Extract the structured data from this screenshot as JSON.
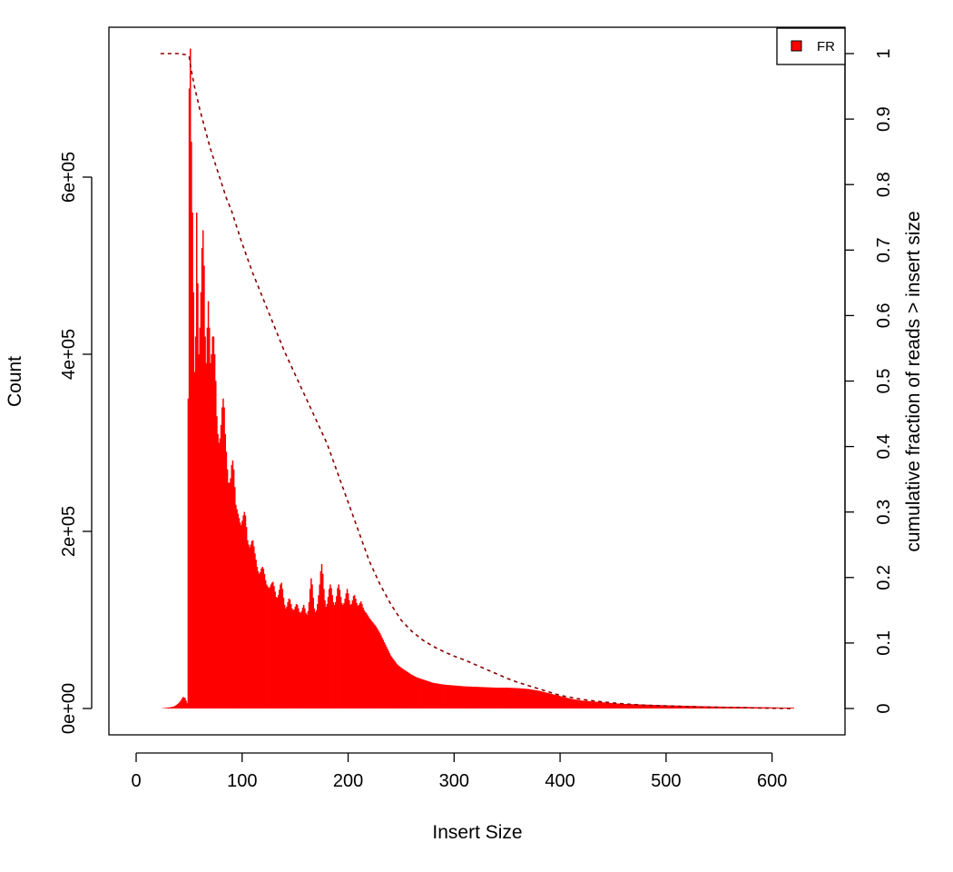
{
  "chart_data": {
    "type": "bar",
    "xlabel": "Insert Size",
    "ylabel": "Count",
    "y2label": "cumulative fraction of reads > insert size",
    "xlim": [
      0,
      620
    ],
    "ylim": [
      0,
      740000
    ],
    "y2lim": [
      0,
      1
    ],
    "x_ticks": [
      0,
      100,
      200,
      300,
      400,
      500,
      600
    ],
    "x_tick_labels": [
      "0",
      "100",
      "200",
      "300",
      "400",
      "500",
      "600"
    ],
    "y_ticks": [
      0,
      200000,
      400000,
      600000
    ],
    "y_tick_labels": [
      "0e+00",
      "2e+05",
      "4e+05",
      "6e+05"
    ],
    "y2_ticks": [
      0,
      0.1,
      0.2,
      0.3,
      0.4,
      0.5,
      0.6,
      0.7,
      0.8,
      0.9,
      1
    ],
    "y2_tick_labels": [
      "0",
      "0.1",
      "0.2",
      "0.3",
      "0.4",
      "0.5",
      "0.6",
      "0.7",
      "0.8",
      "0.9",
      "1"
    ],
    "legend": {
      "position": "top-right",
      "entries": [
        {
          "label": "FR",
          "color": "#ff0000"
        }
      ]
    },
    "colors": {
      "bars": "#ff0000",
      "cumulative": "#8b0000"
    },
    "series": [
      {
        "name": "FR",
        "kind": "histogram",
        "points": [
          [
            23,
            0
          ],
          [
            30,
            1000
          ],
          [
            35,
            2000
          ],
          [
            38,
            4000
          ],
          [
            40,
            6000
          ],
          [
            42,
            9000
          ],
          [
            44,
            13000
          ],
          [
            46,
            12000
          ],
          [
            48,
            6000
          ],
          [
            49,
            350000
          ],
          [
            50,
            700000
          ],
          [
            51,
            745000
          ],
          [
            52,
            640000
          ],
          [
            53,
            560000
          ],
          [
            54,
            470000
          ],
          [
            55,
            380000
          ],
          [
            56,
            420000
          ],
          [
            57,
            560000
          ],
          [
            58,
            480000
          ],
          [
            59,
            400000
          ],
          [
            60,
            430000
          ],
          [
            61,
            470000
          ],
          [
            62,
            520000
          ],
          [
            63,
            540000
          ],
          [
            64,
            500000
          ],
          [
            65,
            420000
          ],
          [
            66,
            390000
          ],
          [
            67,
            430000
          ],
          [
            68,
            460000
          ],
          [
            69,
            430000
          ],
          [
            70,
            390000
          ],
          [
            71,
            400000
          ],
          [
            72,
            420000
          ],
          [
            73,
            420000
          ],
          [
            74,
            400000
          ],
          [
            75,
            370000
          ],
          [
            76,
            330000
          ],
          [
            77,
            310000
          ],
          [
            78,
            300000
          ],
          [
            79,
            305000
          ],
          [
            80,
            320000
          ],
          [
            81,
            340000
          ],
          [
            82,
            350000
          ],
          [
            83,
            340000
          ],
          [
            84,
            310000
          ],
          [
            85,
            290000
          ],
          [
            86,
            270000
          ],
          [
            87,
            255000
          ],
          [
            88,
            255000
          ],
          [
            89,
            260000
          ],
          [
            90,
            275000
          ],
          [
            91,
            280000
          ],
          [
            92,
            270000
          ],
          [
            93,
            250000
          ],
          [
            94,
            230000
          ],
          [
            95,
            225000
          ],
          [
            96,
            220000
          ],
          [
            97,
            215000
          ],
          [
            98,
            210000
          ],
          [
            99,
            207000
          ],
          [
            100,
            212000
          ],
          [
            101,
            218000
          ],
          [
            102,
            222000
          ],
          [
            103,
            218000
          ],
          [
            104,
            205000
          ],
          [
            105,
            190000
          ],
          [
            106,
            185000
          ],
          [
            107,
            182000
          ],
          [
            108,
            185000
          ],
          [
            109,
            189000
          ],
          [
            110,
            190000
          ],
          [
            111,
            183000
          ],
          [
            112,
            175000
          ],
          [
            113,
            168000
          ],
          [
            114,
            160000
          ],
          [
            115,
            155000
          ],
          [
            116,
            152000
          ],
          [
            117,
            154000
          ],
          [
            118,
            158000
          ],
          [
            119,
            160000
          ],
          [
            120,
            158000
          ],
          [
            121,
            152000
          ],
          [
            122,
            145000
          ],
          [
            123,
            140000
          ],
          [
            124,
            138000
          ],
          [
            125,
            136000
          ],
          [
            126,
            137000
          ],
          [
            127,
            140000
          ],
          [
            128,
            142000
          ],
          [
            129,
            143000
          ],
          [
            130,
            138000
          ],
          [
            131,
            132000
          ],
          [
            132,
            126000
          ],
          [
            133,
            125000
          ],
          [
            134,
            128000
          ],
          [
            135,
            134000
          ],
          [
            136,
            140000
          ],
          [
            137,
            142000
          ],
          [
            138,
            135000
          ],
          [
            139,
            125000
          ],
          [
            140,
            117000
          ],
          [
            141,
            113000
          ],
          [
            142,
            115000
          ],
          [
            143,
            120000
          ],
          [
            144,
            124000
          ],
          [
            145,
            123000
          ],
          [
            146,
            118000
          ],
          [
            147,
            113000
          ],
          [
            148,
            111000
          ],
          [
            149,
            112000
          ],
          [
            150,
            115000
          ],
          [
            151,
            118000
          ],
          [
            152,
            117000
          ],
          [
            153,
            113000
          ],
          [
            154,
            109000
          ],
          [
            155,
            108000
          ],
          [
            156,
            110000
          ],
          [
            157,
            114000
          ],
          [
            158,
            117000
          ],
          [
            159,
            113000
          ],
          [
            160,
            108000
          ],
          [
            161,
            106000
          ],
          [
            162,
            110000
          ],
          [
            163,
            120000
          ],
          [
            164,
            135000
          ],
          [
            165,
            147000
          ],
          [
            166,
            140000
          ],
          [
            167,
            125000
          ],
          [
            168,
            113000
          ],
          [
            169,
            109000
          ],
          [
            170,
            111000
          ],
          [
            171,
            118000
          ],
          [
            172,
            128000
          ],
          [
            173,
            140000
          ],
          [
            174,
            155000
          ],
          [
            175,
            163000
          ],
          [
            176,
            152000
          ],
          [
            177,
            135000
          ],
          [
            178,
            122000
          ],
          [
            179,
            115000
          ],
          [
            180,
            118000
          ],
          [
            181,
            126000
          ],
          [
            182,
            135000
          ],
          [
            183,
            140000
          ],
          [
            184,
            136000
          ],
          [
            185,
            128000
          ],
          [
            186,
            120000
          ],
          [
            187,
            117000
          ],
          [
            188,
            120000
          ],
          [
            189,
            127000
          ],
          [
            190,
            136000
          ],
          [
            191,
            140000
          ],
          [
            192,
            134000
          ],
          [
            193,
            126000
          ],
          [
            194,
            119000
          ],
          [
            195,
            117000
          ],
          [
            196,
            119000
          ],
          [
            197,
            124000
          ],
          [
            198,
            130000
          ],
          [
            199,
            135000
          ],
          [
            200,
            130000
          ],
          [
            201,
            122000
          ],
          [
            202,
            117000
          ],
          [
            203,
            118000
          ],
          [
            204,
            122000
          ],
          [
            205,
            127000
          ],
          [
            206,
            128000
          ],
          [
            207,
            124000
          ],
          [
            208,
            119000
          ],
          [
            209,
            116000
          ],
          [
            210,
            117000
          ],
          [
            211,
            119000
          ],
          [
            212,
            121000
          ],
          [
            213,
            118000
          ],
          [
            214,
            114000
          ],
          [
            215,
            111000
          ],
          [
            216,
            109000
          ],
          [
            217,
            108000
          ],
          [
            218,
            106000
          ],
          [
            219,
            104000
          ],
          [
            220,
            102000
          ],
          [
            222,
            99000
          ],
          [
            224,
            96000
          ],
          [
            226,
            93000
          ],
          [
            228,
            89000
          ],
          [
            230,
            85000
          ],
          [
            232,
            80000
          ],
          [
            234,
            75000
          ],
          [
            236,
            70000
          ],
          [
            238,
            65000
          ],
          [
            240,
            60000
          ],
          [
            243,
            55000
          ],
          [
            246,
            50000
          ],
          [
            250,
            46000
          ],
          [
            255,
            42000
          ],
          [
            260,
            38000
          ],
          [
            265,
            35000
          ],
          [
            270,
            33000
          ],
          [
            275,
            31000
          ],
          [
            280,
            29000
          ],
          [
            285,
            28000
          ],
          [
            290,
            27000
          ],
          [
            300,
            26000
          ],
          [
            310,
            25000
          ],
          [
            320,
            24500
          ],
          [
            330,
            24000
          ],
          [
            340,
            23500
          ],
          [
            350,
            23500
          ],
          [
            360,
            23000
          ],
          [
            370,
            22000
          ],
          [
            380,
            20000
          ],
          [
            390,
            17000
          ],
          [
            400,
            14000
          ],
          [
            410,
            11000
          ],
          [
            420,
            9000
          ],
          [
            430,
            8000
          ],
          [
            440,
            7000
          ],
          [
            450,
            6000
          ],
          [
            460,
            5200
          ],
          [
            470,
            4800
          ],
          [
            480,
            4400
          ],
          [
            490,
            4000
          ],
          [
            500,
            3600
          ],
          [
            510,
            3300
          ],
          [
            520,
            3000
          ],
          [
            530,
            2700
          ],
          [
            540,
            2400
          ],
          [
            550,
            2200
          ],
          [
            560,
            2000
          ],
          [
            570,
            1800
          ],
          [
            580,
            1600
          ],
          [
            590,
            1400
          ],
          [
            600,
            1200
          ],
          [
            610,
            1000
          ],
          [
            620,
            900
          ]
        ]
      },
      {
        "name": "cumulative",
        "kind": "line",
        "axis": "right",
        "points": [
          [
            23,
            1.0
          ],
          [
            40,
            1.0
          ],
          [
            48,
            0.998
          ],
          [
            50,
            0.995
          ],
          [
            52,
            0.975
          ],
          [
            55,
            0.95
          ],
          [
            60,
            0.915
          ],
          [
            65,
            0.885
          ],
          [
            70,
            0.855
          ],
          [
            75,
            0.83
          ],
          [
            80,
            0.805
          ],
          [
            85,
            0.78
          ],
          [
            90,
            0.76
          ],
          [
            95,
            0.735
          ],
          [
            100,
            0.71
          ],
          [
            110,
            0.665
          ],
          [
            120,
            0.625
          ],
          [
            130,
            0.585
          ],
          [
            140,
            0.545
          ],
          [
            150,
            0.51
          ],
          [
            160,
            0.475
          ],
          [
            170,
            0.44
          ],
          [
            180,
            0.405
          ],
          [
            190,
            0.36
          ],
          [
            200,
            0.315
          ],
          [
            210,
            0.27
          ],
          [
            220,
            0.225
          ],
          [
            230,
            0.19
          ],
          [
            240,
            0.16
          ],
          [
            250,
            0.135
          ],
          [
            260,
            0.118
          ],
          [
            270,
            0.105
          ],
          [
            280,
            0.095
          ],
          [
            290,
            0.087
          ],
          [
            300,
            0.08
          ],
          [
            310,
            0.074
          ],
          [
            320,
            0.067
          ],
          [
            330,
            0.06
          ],
          [
            340,
            0.053
          ],
          [
            350,
            0.046
          ],
          [
            360,
            0.04
          ],
          [
            370,
            0.035
          ],
          [
            380,
            0.03
          ],
          [
            390,
            0.025
          ],
          [
            400,
            0.02
          ],
          [
            420,
            0.014
          ],
          [
            440,
            0.01
          ],
          [
            460,
            0.007
          ],
          [
            480,
            0.005
          ],
          [
            500,
            0.004
          ],
          [
            520,
            0.003
          ],
          [
            540,
            0.002
          ],
          [
            560,
            0.0015
          ],
          [
            580,
            0.001
          ],
          [
            600,
            0.0005
          ],
          [
            620,
            0.0
          ]
        ]
      }
    ]
  }
}
